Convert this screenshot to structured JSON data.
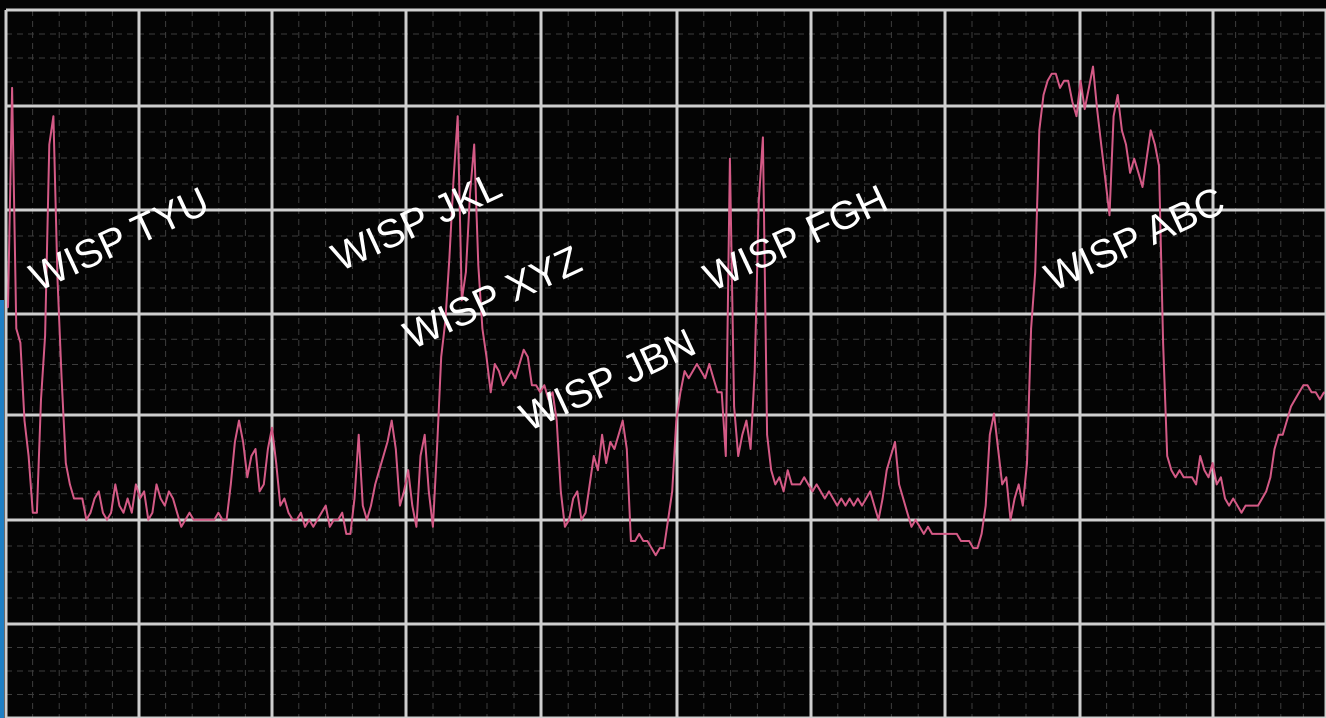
{
  "chart_data": {
    "type": "line",
    "title": "",
    "xlabel": "",
    "ylabel": "",
    "grid": true,
    "legend": "none",
    "colors": {
      "background": "#040404",
      "major_grid": "#cfcfcf",
      "minor_grid": "#3d3d3d",
      "series": "#d45a86",
      "label": "#ffffff",
      "left_edge": "#1f7fc4"
    },
    "ylim": [
      0,
      100
    ],
    "y": [
      58,
      89,
      55,
      53,
      42,
      37,
      29,
      29,
      45,
      54,
      81,
      85,
      62,
      48,
      36,
      33,
      31,
      31,
      31,
      28,
      29,
      31,
      32,
      29,
      28,
      29,
      33,
      30,
      29,
      31,
      29,
      33,
      31,
      32,
      28,
      29,
      33,
      31,
      30,
      32,
      31,
      29,
      27,
      28,
      29,
      28,
      28,
      28,
      28,
      28,
      28,
      29,
      28,
      28,
      33,
      39,
      42,
      39,
      34,
      37,
      38,
      32,
      33,
      38,
      41,
      36,
      30,
      31,
      29,
      28,
      28,
      29,
      27,
      28,
      27,
      28,
      29,
      30,
      27,
      28,
      28,
      29,
      26,
      26,
      31,
      40,
      30,
      28,
      30,
      33,
      35,
      37,
      39,
      42,
      38,
      30,
      32,
      35,
      30,
      27,
      37,
      40,
      32,
      27,
      38,
      51,
      56,
      65,
      76,
      85,
      59,
      63,
      74,
      81,
      64,
      55,
      51,
      46,
      50,
      49,
      47,
      48,
      49,
      48,
      50,
      52,
      51,
      47,
      47,
      46,
      47,
      45,
      46,
      42,
      32,
      27,
      28,
      31,
      32,
      28,
      29,
      33,
      37,
      35,
      40,
      36,
      39,
      38,
      40,
      42,
      38,
      25,
      25,
      26,
      25,
      25,
      24,
      23,
      24,
      24,
      28,
      32,
      42,
      46,
      49,
      48,
      49,
      50,
      49,
      48,
      50,
      48,
      46,
      46,
      37,
      79,
      44,
      37,
      40,
      42,
      38,
      49,
      73,
      82,
      40,
      35,
      33,
      34,
      32,
      35,
      33,
      33,
      33,
      34,
      33,
      32,
      33,
      32,
      31,
      32,
      31,
      30,
      31,
      30,
      31,
      30,
      31,
      30,
      31,
      32,
      30,
      28,
      31,
      35,
      37,
      39,
      33,
      31,
      29,
      27,
      28,
      27,
      26,
      27,
      26,
      26,
      26,
      26,
      26,
      26,
      26,
      25,
      25,
      25,
      24,
      24,
      26,
      30,
      40,
      43,
      38,
      33,
      34,
      28,
      31,
      33,
      30,
      36,
      55,
      63,
      83,
      88,
      90,
      91,
      91,
      89,
      90,
      90,
      87,
      85,
      90,
      86,
      89,
      92,
      86,
      81,
      76,
      71,
      85,
      88,
      83,
      81,
      77,
      79,
      77,
      75,
      79,
      83,
      81,
      78,
      53,
      37,
      35,
      34,
      35,
      34,
      34,
      34,
      33,
      37,
      35,
      34,
      36,
      33,
      34,
      31,
      30,
      31,
      30,
      29,
      30,
      30,
      30,
      30,
      31,
      32,
      34,
      38,
      40,
      40,
      42,
      44,
      45,
      46,
      47,
      47,
      46,
      46,
      45,
      46
    ],
    "annotations": [
      "WISP TYU",
      "WISP JKL",
      "WISP XYZ",
      "WISP JBN",
      "WISP FGH",
      "WISP ABC"
    ]
  }
}
